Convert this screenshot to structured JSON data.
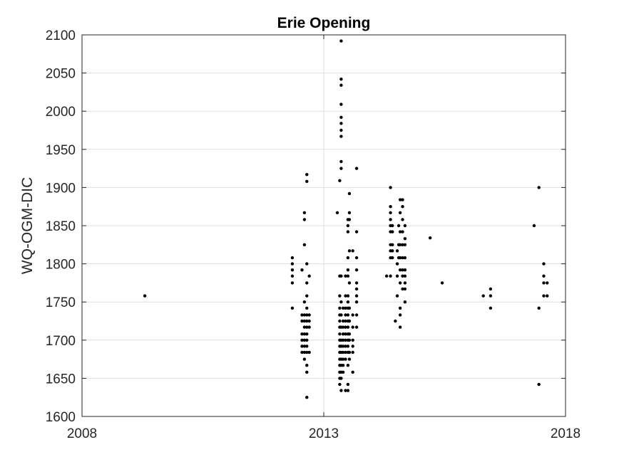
{
  "chart_data": {
    "type": "scatter",
    "title": "Erie Opening",
    "xlabel": "",
    "ylabel": "WQ-OGM-DIC",
    "xlim": [
      2008,
      2018
    ],
    "ylim": [
      1600,
      2100
    ],
    "x_ticks": [
      2008,
      2013,
      2018
    ],
    "x_tick_labels": [
      "2008",
      "2013",
      "2018"
    ],
    "y_ticks": [
      1600,
      1650,
      1700,
      1750,
      1800,
      1850,
      1900,
      1950,
      2000,
      2050,
      2100
    ],
    "y_tick_labels": [
      "1600",
      "1650",
      "1700",
      "1750",
      "1800",
      "1850",
      "1900",
      "1950",
      "2000",
      "2050",
      "2100"
    ],
    "grid": true,
    "marker_color": "#000000",
    "points": [
      [
        2009.3,
        1758
      ],
      [
        2012.35,
        1808
      ],
      [
        2012.35,
        1800
      ],
      [
        2012.35,
        1792
      ],
      [
        2012.35,
        1784
      ],
      [
        2012.35,
        1775
      ],
      [
        2012.35,
        1742
      ],
      [
        2012.55,
        1792
      ],
      [
        2012.55,
        1708
      ],
      [
        2012.55,
        1700
      ],
      [
        2012.55,
        1692
      ],
      [
        2012.55,
        1684
      ],
      [
        2012.55,
        1733
      ],
      [
        2012.55,
        1725
      ],
      [
        2012.6,
        1867
      ],
      [
        2012.6,
        1858
      ],
      [
        2012.6,
        1825
      ],
      [
        2012.6,
        1750
      ],
      [
        2012.6,
        1733
      ],
      [
        2012.6,
        1725
      ],
      [
        2012.6,
        1717
      ],
      [
        2012.6,
        1708
      ],
      [
        2012.6,
        1700
      ],
      [
        2012.6,
        1692
      ],
      [
        2012.6,
        1684
      ],
      [
        2012.6,
        1675
      ],
      [
        2012.65,
        1917
      ],
      [
        2012.65,
        1908
      ],
      [
        2012.65,
        1800
      ],
      [
        2012.65,
        1775
      ],
      [
        2012.65,
        1758
      ],
      [
        2012.65,
        1742
      ],
      [
        2012.65,
        1733
      ],
      [
        2012.65,
        1725
      ],
      [
        2012.65,
        1717
      ],
      [
        2012.65,
        1708
      ],
      [
        2012.65,
        1700
      ],
      [
        2012.65,
        1692
      ],
      [
        2012.65,
        1684
      ],
      [
        2012.65,
        1667
      ],
      [
        2012.65,
        1658
      ],
      [
        2012.65,
        1625
      ],
      [
        2012.7,
        1784
      ],
      [
        2012.7,
        1733
      ],
      [
        2012.7,
        1725
      ],
      [
        2012.7,
        1717
      ],
      [
        2012.7,
        1684
      ],
      [
        2013.28,
        1867
      ],
      [
        2013.33,
        1909
      ],
      [
        2013.33,
        1784
      ],
      [
        2013.33,
        1758
      ],
      [
        2013.33,
        1742
      ],
      [
        2013.33,
        1733
      ],
      [
        2013.33,
        1725
      ],
      [
        2013.33,
        1717
      ],
      [
        2013.33,
        1708
      ],
      [
        2013.33,
        1700
      ],
      [
        2013.33,
        1692
      ],
      [
        2013.33,
        1684
      ],
      [
        2013.33,
        1675
      ],
      [
        2013.33,
        1667
      ],
      [
        2013.33,
        1658
      ],
      [
        2013.33,
        1650
      ],
      [
        2013.33,
        1642
      ],
      [
        2013.36,
        2092
      ],
      [
        2013.36,
        2042
      ],
      [
        2013.36,
        2034
      ],
      [
        2013.36,
        2009
      ],
      [
        2013.36,
        1992
      ],
      [
        2013.36,
        1984
      ],
      [
        2013.36,
        1975
      ],
      [
        2013.36,
        1967
      ],
      [
        2013.36,
        1934
      ],
      [
        2013.36,
        1925
      ],
      [
        2013.36,
        1784
      ],
      [
        2013.36,
        1750
      ],
      [
        2013.36,
        1733
      ],
      [
        2013.36,
        1717
      ],
      [
        2013.36,
        1700
      ],
      [
        2013.36,
        1692
      ],
      [
        2013.36,
        1684
      ],
      [
        2013.36,
        1675
      ],
      [
        2013.36,
        1667
      ],
      [
        2013.36,
        1658
      ],
      [
        2013.36,
        1650
      ],
      [
        2013.36,
        1634
      ],
      [
        2013.4,
        1742
      ],
      [
        2013.4,
        1725
      ],
      [
        2013.4,
        1717
      ],
      [
        2013.4,
        1708
      ],
      [
        2013.4,
        1700
      ],
      [
        2013.4,
        1692
      ],
      [
        2013.4,
        1684
      ],
      [
        2013.4,
        1675
      ],
      [
        2013.4,
        1667
      ],
      [
        2013.4,
        1658
      ],
      [
        2013.45,
        1784
      ],
      [
        2013.45,
        1758
      ],
      [
        2013.45,
        1742
      ],
      [
        2013.45,
        1733
      ],
      [
        2013.45,
        1725
      ],
      [
        2013.45,
        1717
      ],
      [
        2013.45,
        1708
      ],
      [
        2013.45,
        1700
      ],
      [
        2013.45,
        1692
      ],
      [
        2013.45,
        1684
      ],
      [
        2013.45,
        1675
      ],
      [
        2013.45,
        1634
      ],
      [
        2013.5,
        1858
      ],
      [
        2013.5,
        1850
      ],
      [
        2013.5,
        1842
      ],
      [
        2013.5,
        1808
      ],
      [
        2013.5,
        1792
      ],
      [
        2013.5,
        1784
      ],
      [
        2013.5,
        1758
      ],
      [
        2013.5,
        1750
      ],
      [
        2013.5,
        1742
      ],
      [
        2013.5,
        1733
      ],
      [
        2013.5,
        1725
      ],
      [
        2013.5,
        1717
      ],
      [
        2013.5,
        1708
      ],
      [
        2013.5,
        1700
      ],
      [
        2013.5,
        1692
      ],
      [
        2013.5,
        1684
      ],
      [
        2013.5,
        1667
      ],
      [
        2013.5,
        1642
      ],
      [
        2013.5,
        1634
      ],
      [
        2013.53,
        1892
      ],
      [
        2013.53,
        1867
      ],
      [
        2013.53,
        1858
      ],
      [
        2013.53,
        1817
      ],
      [
        2013.53,
        1775
      ],
      [
        2013.53,
        1742
      ],
      [
        2013.53,
        1725
      ],
      [
        2013.53,
        1708
      ],
      [
        2013.53,
        1700
      ],
      [
        2013.53,
        1684
      ],
      [
        2013.53,
        1675
      ],
      [
        2013.6,
        1817
      ],
      [
        2013.6,
        1733
      ],
      [
        2013.6,
        1717
      ],
      [
        2013.6,
        1700
      ],
      [
        2013.6,
        1692
      ],
      [
        2013.6,
        1684
      ],
      [
        2013.6,
        1658
      ],
      [
        2013.68,
        1925
      ],
      [
        2013.68,
        1842
      ],
      [
        2013.68,
        1808
      ],
      [
        2013.68,
        1792
      ],
      [
        2013.68,
        1775
      ],
      [
        2013.68,
        1767
      ],
      [
        2013.68,
        1758
      ],
      [
        2013.68,
        1750
      ],
      [
        2013.68,
        1733
      ],
      [
        2013.68,
        1717
      ],
      [
        2014.3,
        1784
      ],
      [
        2014.38,
        1900
      ],
      [
        2014.38,
        1875
      ],
      [
        2014.38,
        1867
      ],
      [
        2014.38,
        1858
      ],
      [
        2014.38,
        1850
      ],
      [
        2014.38,
        1842
      ],
      [
        2014.38,
        1825
      ],
      [
        2014.38,
        1817
      ],
      [
        2014.38,
        1808
      ],
      [
        2014.38,
        1784
      ],
      [
        2014.42,
        1850
      ],
      [
        2014.42,
        1842
      ],
      [
        2014.42,
        1825
      ],
      [
        2014.42,
        1817
      ],
      [
        2014.42,
        1808
      ],
      [
        2014.48,
        1725
      ],
      [
        2014.52,
        1817
      ],
      [
        2014.52,
        1800
      ],
      [
        2014.52,
        1784
      ],
      [
        2014.52,
        1758
      ],
      [
        2014.55,
        1850
      ],
      [
        2014.55,
        1825
      ],
      [
        2014.55,
        1808
      ],
      [
        2014.58,
        1884
      ],
      [
        2014.58,
        1867
      ],
      [
        2014.58,
        1842
      ],
      [
        2014.58,
        1825
      ],
      [
        2014.58,
        1808
      ],
      [
        2014.58,
        1792
      ],
      [
        2014.58,
        1775
      ],
      [
        2014.58,
        1742
      ],
      [
        2014.58,
        1733
      ],
      [
        2014.58,
        1717
      ],
      [
        2014.63,
        1884
      ],
      [
        2014.63,
        1875
      ],
      [
        2014.63,
        1858
      ],
      [
        2014.63,
        1842
      ],
      [
        2014.63,
        1825
      ],
      [
        2014.63,
        1808
      ],
      [
        2014.63,
        1792
      ],
      [
        2014.63,
        1784
      ],
      [
        2014.63,
        1767
      ],
      [
        2014.68,
        1850
      ],
      [
        2014.68,
        1833
      ],
      [
        2014.68,
        1825
      ],
      [
        2014.68,
        1808
      ],
      [
        2014.68,
        1792
      ],
      [
        2014.68,
        1784
      ],
      [
        2014.68,
        1775
      ],
      [
        2014.68,
        1767
      ],
      [
        2014.68,
        1750
      ],
      [
        2015.2,
        1834
      ],
      [
        2015.45,
        1775
      ],
      [
        2016.3,
        1758
      ],
      [
        2016.45,
        1767
      ],
      [
        2016.45,
        1758
      ],
      [
        2016.45,
        1742
      ],
      [
        2017.35,
        1850
      ],
      [
        2017.45,
        1900
      ],
      [
        2017.45,
        1742
      ],
      [
        2017.45,
        1642
      ],
      [
        2017.55,
        1800
      ],
      [
        2017.55,
        1784
      ],
      [
        2017.55,
        1775
      ],
      [
        2017.55,
        1758
      ],
      [
        2017.62,
        1775
      ],
      [
        2017.62,
        1758
      ]
    ]
  }
}
